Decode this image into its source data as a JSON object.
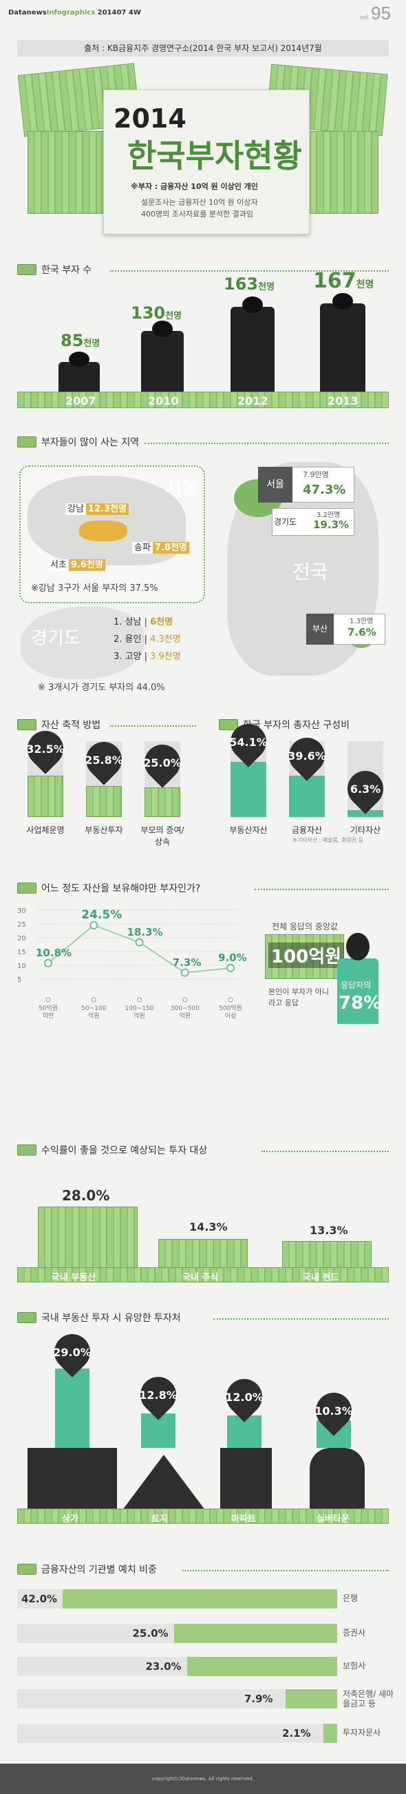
{
  "header": {
    "brand_main": "Datanews",
    "brand_ig": "Infographics",
    "brand_date": "201407 4W",
    "vol_prefix": "vol.",
    "vol_num": "95"
  },
  "source": "출처 : KB금융지주 경영연구소(2014 한국 부자 보고서) 2014년7월",
  "title": {
    "year": "2014",
    "main": "한국부자현황",
    "note1": "※부자 : 금융자산 10억 원 이상인 개인",
    "note2": "설문조사는 금융자산 10억 원 이상자",
    "note3": "400명의 조사자료를 분석한 결과임"
  },
  "s1": {
    "title": "한국 부자 수",
    "years": [
      "2007",
      "2010",
      "2012",
      "2013"
    ],
    "values": [
      "85",
      "130",
      "163",
      "167"
    ],
    "unit": "천명"
  },
  "s2": {
    "title": "부자들이 많이 사는 지역",
    "seoul_label": "서울",
    "gangnam": "강남",
    "gangnam_v": "12.3천명",
    "songpa": "송파",
    "songpa_v": "7.8천명",
    "seocho": "서초",
    "seocho_v": "9.6천명",
    "seoul_note": "※강남 3구가 서울 부자의 37.5%",
    "gyeonggi_label": "경기도",
    "g1": "1. 성남",
    "g1v": "6천명",
    "g2": "2. 용인",
    "g2v": "4.3천명",
    "g3": "3. 고양",
    "g3v": "3.9천명",
    "g_note": "※ 3개시가 경기도 부자의 44.0%",
    "national_label": "전국",
    "seoul_box": "서울",
    "seoul_box_v1": "7.9만명",
    "seoul_box_v2": "47.3%",
    "gg_box": "경기도",
    "gg_box_v1": "3.2만명",
    "gg_box_v2": "19.3%",
    "busan_box": "부산",
    "busan_box_v1": "1.3만명",
    "busan_box_v2": "7.6%"
  },
  "s3": {
    "title": "자산 축적 방법",
    "items": [
      {
        "label": "사업체운영",
        "value": "32.5%"
      },
      {
        "label": "부동산투자",
        "value": "25.8%"
      },
      {
        "label": "부모의 증여/상속",
        "value": "25.0%"
      }
    ]
  },
  "s4": {
    "title": "한국 부자의 총자산 구성비",
    "items": [
      {
        "label": "부동산자산",
        "value": "54.1%"
      },
      {
        "label": "금융자산",
        "value": "39.6%"
      },
      {
        "label": "기타자산",
        "value": "6.3%"
      }
    ],
    "note": "※기타자산 : 예술품, 회원권 등"
  },
  "s5": {
    "title": "어느 정도 자산을 보유해야만 부자인가?",
    "side1": "전체 응답의 중앙값",
    "side_val": "100억원",
    "side2": "본인이 부자가 아니라고 응답",
    "side3": "응답자의",
    "side_pct": "78%"
  },
  "chart_data": [
    {
      "type": "line",
      "categories": [
        "50억원 미만",
        "50~100 억원",
        "100~150 억원",
        "300~500 억원",
        "500억원 이상"
      ],
      "values": [
        10.8,
        24.5,
        18.3,
        7.3,
        9.0
      ],
      "value_labels": [
        "10.8%",
        "24.5%",
        "18.3%",
        "7.3%",
        "9.0%"
      ],
      "yticks": [
        "30",
        "25",
        "20",
        "15",
        "10",
        "5"
      ],
      "ylim": [
        0,
        30
      ]
    },
    {
      "type": "bar",
      "categories": [
        "은행",
        "증권사",
        "보험사",
        "저축은행/ 새마을금고 등",
        "투자자문사"
      ],
      "values": [
        42.0,
        25.0,
        23.0,
        7.9,
        2.1
      ],
      "value_labels": [
        "42.0%",
        "25.0%",
        "23.0%",
        "7.9%",
        "2.1%"
      ]
    }
  ],
  "s6": {
    "title": "수익률이 좋을 것으로 예상되는 투자 대상",
    "items": [
      {
        "label": "국내 부동산",
        "value": "28.0%"
      },
      {
        "label": "국내 주식",
        "value": "14.3%"
      },
      {
        "label": "국내 펀드",
        "value": "13.3%"
      }
    ]
  },
  "s7": {
    "title": "국내 부동산 투자 시 유망한 투자처",
    "items": [
      {
        "label": "상가",
        "value": "29.0%"
      },
      {
        "label": "토지",
        "value": "12.8%"
      },
      {
        "label": "아파트",
        "value": "12.0%"
      },
      {
        "label": "실버타운",
        "value": "10.3%"
      }
    ]
  },
  "s8": {
    "title": "금융자산의 기관별 예치 비중"
  },
  "footer": "copyright(c)Datanews. All rights reserved.",
  "colors": {
    "green": "#4a8f3a",
    "teal": "#4fbf9a",
    "money": "#9ccf7e",
    "dark": "#2e2e2e"
  }
}
